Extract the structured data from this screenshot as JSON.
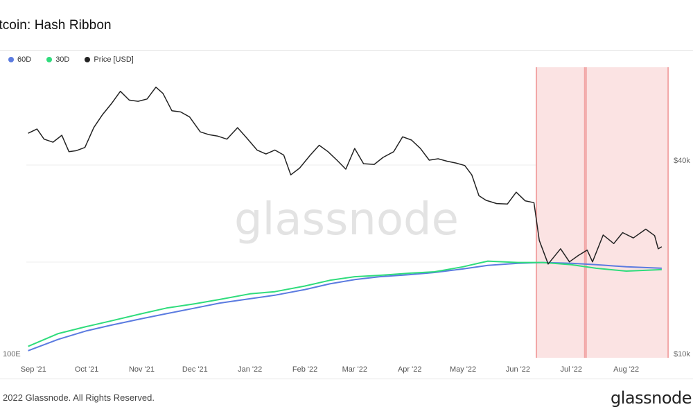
{
  "title": "itcoin: Hash Ribbon",
  "legend": [
    {
      "label": "60D",
      "color": "#5b7be0"
    },
    {
      "label": "30D",
      "color": "#2fdc7c"
    },
    {
      "label": "Price [USD]",
      "color": "#222222"
    }
  ],
  "watermark": "glassnode",
  "footer": {
    "copyright": "2022 Glassnode. All Rights Reserved.",
    "logo": "glassnode"
  },
  "chart_data": {
    "type": "line",
    "x_tick_labels": [
      "Sep '21",
      "Oct '21",
      "Nov '21",
      "Dec '21",
      "Jan '22",
      "Feb '22",
      "Mar '22",
      "Apr '22",
      "May '22",
      "Jun '22",
      "Jul '22",
      "Aug '22"
    ],
    "left_axis_label": "100E",
    "right_axis_ticks": [
      {
        "label": "$40k",
        "value": 40000
      },
      {
        "label": "$10k",
        "value": 10000
      }
    ],
    "right_axis_scale": "log",
    "grid": true,
    "highlight_bands": [
      {
        "start": "2022-06-11",
        "end": "2022-07-09"
      },
      {
        "start": "2022-07-09",
        "end": "2022-08-25"
      }
    ],
    "highlight_color": "#fbe3e3",
    "highlight_edge_color": "#f2a6a6",
    "series": [
      {
        "name": "Price [USD]",
        "color": "#222222",
        "points": [
          [
            "2021-08-29",
            48500
          ],
          [
            "2021-09-03",
            50000
          ],
          [
            "2021-09-07",
            46500
          ],
          [
            "2021-09-12",
            45500
          ],
          [
            "2021-09-17",
            47800
          ],
          [
            "2021-09-21",
            42500
          ],
          [
            "2021-09-25",
            42800
          ],
          [
            "2021-09-30",
            43800
          ],
          [
            "2021-10-05",
            50500
          ],
          [
            "2021-10-10",
            55500
          ],
          [
            "2021-10-15",
            60000
          ],
          [
            "2021-10-20",
            65500
          ],
          [
            "2021-10-25",
            61500
          ],
          [
            "2021-10-30",
            61000
          ],
          [
            "2021-11-04",
            62000
          ],
          [
            "2021-11-09",
            67500
          ],
          [
            "2021-11-13",
            64500
          ],
          [
            "2021-11-18",
            57000
          ],
          [
            "2021-11-23",
            56500
          ],
          [
            "2021-11-28",
            54500
          ],
          [
            "2021-12-04",
            49000
          ],
          [
            "2021-12-09",
            48000
          ],
          [
            "2021-12-14",
            47500
          ],
          [
            "2021-12-19",
            46500
          ],
          [
            "2021-12-25",
            50500
          ],
          [
            "2021-12-30",
            47000
          ],
          [
            "2022-01-05",
            43000
          ],
          [
            "2022-01-10",
            41800
          ],
          [
            "2022-01-15",
            43000
          ],
          [
            "2022-01-20",
            41500
          ],
          [
            "2022-01-24",
            36000
          ],
          [
            "2022-01-29",
            37800
          ],
          [
            "2022-02-04",
            41500
          ],
          [
            "2022-02-09",
            44500
          ],
          [
            "2022-02-14",
            42500
          ],
          [
            "2022-02-19",
            40000
          ],
          [
            "2022-02-24",
            37500
          ],
          [
            "2022-03-01",
            43500
          ],
          [
            "2022-03-06",
            39000
          ],
          [
            "2022-03-12",
            38800
          ],
          [
            "2022-03-17",
            40800
          ],
          [
            "2022-03-23",
            42500
          ],
          [
            "2022-03-28",
            47300
          ],
          [
            "2022-04-02",
            46200
          ],
          [
            "2022-04-07",
            43500
          ],
          [
            "2022-04-12",
            40000
          ],
          [
            "2022-04-17",
            40400
          ],
          [
            "2022-04-22",
            39700
          ],
          [
            "2022-04-27",
            39200
          ],
          [
            "2022-05-02",
            38500
          ],
          [
            "2022-05-06",
            36000
          ],
          [
            "2022-05-10",
            31000
          ],
          [
            "2022-05-14",
            30000
          ],
          [
            "2022-05-20",
            29300
          ],
          [
            "2022-05-26",
            29200
          ],
          [
            "2022-05-31",
            31800
          ],
          [
            "2022-06-05",
            29900
          ],
          [
            "2022-06-10",
            29500
          ],
          [
            "2022-06-13",
            22500
          ],
          [
            "2022-06-18",
            19000
          ],
          [
            "2022-06-25",
            21200
          ],
          [
            "2022-06-30",
            19300
          ],
          [
            "2022-07-05",
            20200
          ],
          [
            "2022-07-10",
            21000
          ],
          [
            "2022-07-13",
            19300
          ],
          [
            "2022-07-19",
            23400
          ],
          [
            "2022-07-25",
            22000
          ],
          [
            "2022-07-30",
            23800
          ],
          [
            "2022-08-05",
            22900
          ],
          [
            "2022-08-12",
            24400
          ],
          [
            "2022-08-17",
            23300
          ],
          [
            "2022-08-19",
            21200
          ],
          [
            "2022-08-21",
            21500
          ]
        ]
      },
      {
        "name": "60D",
        "color": "#5b7be0",
        "points": [
          [
            "2021-08-29",
            10
          ],
          [
            "2021-09-15",
            26
          ],
          [
            "2021-10-01",
            38
          ],
          [
            "2021-10-15",
            46
          ],
          [
            "2021-11-01",
            55
          ],
          [
            "2021-11-15",
            62
          ],
          [
            "2021-12-01",
            70
          ],
          [
            "2021-12-15",
            77
          ],
          [
            "2022-01-01",
            83
          ],
          [
            "2022-01-15",
            88
          ],
          [
            "2022-02-01",
            96
          ],
          [
            "2022-02-15",
            104
          ],
          [
            "2022-03-01",
            110
          ],
          [
            "2022-03-15",
            114
          ],
          [
            "2022-04-01",
            117
          ],
          [
            "2022-04-15",
            120
          ],
          [
            "2022-05-01",
            125
          ],
          [
            "2022-05-15",
            130
          ],
          [
            "2022-06-01",
            133
          ],
          [
            "2022-06-15",
            134
          ],
          [
            "2022-07-01",
            133
          ],
          [
            "2022-07-15",
            131
          ],
          [
            "2022-08-01",
            128
          ],
          [
            "2022-08-21",
            126
          ]
        ]
      },
      {
        "name": "30D",
        "color": "#2fdc7c",
        "points": [
          [
            "2021-08-29",
            16
          ],
          [
            "2021-09-15",
            34
          ],
          [
            "2021-10-01",
            44
          ],
          [
            "2021-10-15",
            52
          ],
          [
            "2021-11-01",
            62
          ],
          [
            "2021-11-15",
            70
          ],
          [
            "2021-12-01",
            76
          ],
          [
            "2021-12-15",
            82
          ],
          [
            "2022-01-01",
            90
          ],
          [
            "2022-01-15",
            93
          ],
          [
            "2022-02-01",
            101
          ],
          [
            "2022-02-15",
            109
          ],
          [
            "2022-03-01",
            114
          ],
          [
            "2022-03-15",
            116
          ],
          [
            "2022-04-01",
            119
          ],
          [
            "2022-04-15",
            121
          ],
          [
            "2022-05-01",
            128
          ],
          [
            "2022-05-15",
            136
          ],
          [
            "2022-06-01",
            134
          ],
          [
            "2022-06-15",
            134
          ],
          [
            "2022-07-01",
            131
          ],
          [
            "2022-07-15",
            126
          ],
          [
            "2022-08-01",
            122
          ],
          [
            "2022-08-21",
            124
          ]
        ]
      }
    ]
  }
}
